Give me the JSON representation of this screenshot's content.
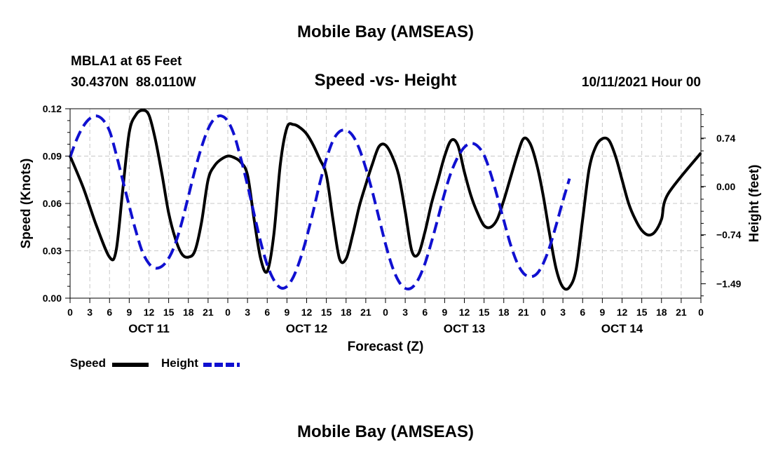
{
  "page": {
    "top_title": "Mobile Bay (AMSEAS)",
    "bottom_title": "Mobile Bay (AMSEAS)",
    "station_line": "MBLA1 at 65 Feet",
    "coords_line": "30.4370N  88.0110W",
    "date_line": "10/11/2021 Hour 00"
  },
  "legend": {
    "speed_label": "Speed",
    "height_label": "Height"
  },
  "colors": {
    "speed": "#000000",
    "height": "#1010d0",
    "grid": "#c8c8c8"
  },
  "chart_data": {
    "type": "line",
    "title": "Speed -vs- Height",
    "xlabel": "Forecast (Z)",
    "ylabel": "Speed (Knots)",
    "y2label": "Height (feet)",
    "grid": true,
    "xlim": [
      0,
      96
    ],
    "ylim": [
      0,
      0.12
    ],
    "y2lim": [
      -1.71,
      1.19
    ],
    "x_tick_values": [
      0,
      3,
      6,
      9,
      12,
      15,
      18,
      21,
      24,
      27,
      30,
      33,
      36,
      39,
      42,
      45,
      48,
      51,
      54,
      57,
      60,
      63,
      66,
      69,
      72,
      75,
      78,
      81,
      84,
      87,
      90,
      93,
      96
    ],
    "x_tick_labels": [
      "0",
      "3",
      "6",
      "9",
      "12",
      "15",
      "18",
      "21",
      "0",
      "3",
      "6",
      "9",
      "12",
      "15",
      "18",
      "21",
      "0",
      "3",
      "6",
      "9",
      "12",
      "15",
      "18",
      "21",
      "0",
      "3",
      "6",
      "9",
      "12",
      "15",
      "18",
      "21",
      "0"
    ],
    "day_labels": [
      {
        "x": 12,
        "label": "OCT 11"
      },
      {
        "x": 36,
        "label": "OCT 12"
      },
      {
        "x": 60,
        "label": "OCT 13"
      },
      {
        "x": 84,
        "label": "OCT 14"
      }
    ],
    "y_tick_values": [
      0,
      0.03,
      0.06,
      0.09,
      0.12
    ],
    "y_tick_labels": [
      "0.00",
      "0.03",
      "0.06",
      "0.09",
      "0.12"
    ],
    "y2_tick_values": [
      -1.49,
      -0.74,
      0.0,
      0.74
    ],
    "y2_tick_labels": [
      "−1.49",
      "−0.74",
      "0.00",
      "0.74"
    ],
    "series": [
      {
        "name": "Speed",
        "axis": "left",
        "style": "solid",
        "points": [
          [
            0,
            0.09
          ],
          [
            2,
            0.07
          ],
          [
            4,
            0.046
          ],
          [
            6,
            0.026
          ],
          [
            7,
            0.03
          ],
          [
            8,
            0.068
          ],
          [
            9,
            0.105
          ],
          [
            10,
            0.116
          ],
          [
            11,
            0.119
          ],
          [
            12,
            0.116
          ],
          [
            13,
            0.1
          ],
          [
            14,
            0.078
          ],
          [
            15,
            0.054
          ],
          [
            16,
            0.038
          ],
          [
            17,
            0.028
          ],
          [
            18,
            0.026
          ],
          [
            19,
            0.03
          ],
          [
            20,
            0.048
          ],
          [
            21,
            0.075
          ],
          [
            22,
            0.084
          ],
          [
            23,
            0.088
          ],
          [
            24,
            0.09
          ],
          [
            25,
            0.089
          ],
          [
            26,
            0.086
          ],
          [
            27,
            0.078
          ],
          [
            28,
            0.05
          ],
          [
            29,
            0.025
          ],
          [
            30,
            0.017
          ],
          [
            31,
            0.04
          ],
          [
            32,
            0.085
          ],
          [
            33,
            0.108
          ],
          [
            34,
            0.11
          ],
          [
            35,
            0.108
          ],
          [
            36,
            0.104
          ],
          [
            37,
            0.097
          ],
          [
            38,
            0.088
          ],
          [
            39,
            0.078
          ],
          [
            40,
            0.05
          ],
          [
            41,
            0.025
          ],
          [
            42,
            0.025
          ],
          [
            43,
            0.04
          ],
          [
            44,
            0.058
          ],
          [
            45,
            0.072
          ],
          [
            46,
            0.085
          ],
          [
            47,
            0.096
          ],
          [
            48,
            0.097
          ],
          [
            49,
            0.09
          ],
          [
            50,
            0.078
          ],
          [
            51,
            0.055
          ],
          [
            52,
            0.03
          ],
          [
            53,
            0.028
          ],
          [
            54,
            0.042
          ],
          [
            55,
            0.06
          ],
          [
            56,
            0.075
          ],
          [
            57,
            0.09
          ],
          [
            58,
            0.1
          ],
          [
            59,
            0.097
          ],
          [
            60,
            0.08
          ],
          [
            61,
            0.065
          ],
          [
            62,
            0.054
          ],
          [
            63,
            0.046
          ],
          [
            64,
            0.045
          ],
          [
            65,
            0.05
          ],
          [
            66,
            0.062
          ],
          [
            67,
            0.076
          ],
          [
            68,
            0.09
          ],
          [
            69,
            0.101
          ],
          [
            70,
            0.098
          ],
          [
            71,
            0.085
          ],
          [
            72,
            0.065
          ],
          [
            73,
            0.04
          ],
          [
            74,
            0.018
          ],
          [
            75,
            0.007
          ],
          [
            76,
            0.007
          ],
          [
            77,
            0.018
          ],
          [
            78,
            0.05
          ],
          [
            79,
            0.082
          ],
          [
            80,
            0.096
          ],
          [
            81,
            0.101
          ],
          [
            82,
            0.1
          ],
          [
            83,
            0.09
          ],
          [
            84,
            0.075
          ],
          [
            85,
            0.06
          ],
          [
            86,
            0.05
          ],
          [
            87,
            0.043
          ],
          [
            88,
            0.04
          ],
          [
            89,
            0.042
          ],
          [
            90,
            0.05
          ],
          [
            91,
            0.066
          ],
          [
            96,
            0.092
          ]
        ]
      },
      {
        "name": "Height",
        "axis": "right",
        "style": "dashed",
        "points": [
          [
            0,
            0.45
          ],
          [
            1,
            0.72
          ],
          [
            2,
            0.92
          ],
          [
            3,
            1.04
          ],
          [
            4,
            1.08
          ],
          [
            5,
            1.02
          ],
          [
            6,
            0.85
          ],
          [
            7,
            0.5
          ],
          [
            8,
            0.1
          ],
          [
            9,
            -0.3
          ],
          [
            10,
            -0.68
          ],
          [
            11,
            -1.0
          ],
          [
            12,
            -1.18
          ],
          [
            13,
            -1.25
          ],
          [
            14,
            -1.22
          ],
          [
            15,
            -1.1
          ],
          [
            16,
            -0.88
          ],
          [
            17,
            -0.55
          ],
          [
            18,
            -0.15
          ],
          [
            19,
            0.25
          ],
          [
            20,
            0.6
          ],
          [
            21,
            0.88
          ],
          [
            22,
            1.04
          ],
          [
            23,
            1.08
          ],
          [
            24,
            1.0
          ],
          [
            25,
            0.78
          ],
          [
            26,
            0.42
          ],
          [
            27,
            0.02
          ],
          [
            28,
            -0.42
          ],
          [
            29,
            -0.85
          ],
          [
            30,
            -1.2
          ],
          [
            31,
            -1.43
          ],
          [
            32,
            -1.55
          ],
          [
            33,
            -1.53
          ],
          [
            34,
            -1.38
          ],
          [
            35,
            -1.12
          ],
          [
            36,
            -0.78
          ],
          [
            37,
            -0.38
          ],
          [
            38,
            0.05
          ],
          [
            39,
            0.42
          ],
          [
            40,
            0.7
          ],
          [
            41,
            0.84
          ],
          [
            42,
            0.86
          ],
          [
            43,
            0.78
          ],
          [
            44,
            0.58
          ],
          [
            45,
            0.28
          ],
          [
            46,
            -0.08
          ],
          [
            47,
            -0.48
          ],
          [
            48,
            -0.88
          ],
          [
            49,
            -1.22
          ],
          [
            50,
            -1.45
          ],
          [
            51,
            -1.56
          ],
          [
            52,
            -1.55
          ],
          [
            53,
            -1.42
          ],
          [
            54,
            -1.18
          ],
          [
            55,
            -0.85
          ],
          [
            56,
            -0.48
          ],
          [
            57,
            -0.1
          ],
          [
            58,
            0.22
          ],
          [
            59,
            0.45
          ],
          [
            60,
            0.6
          ],
          [
            61,
            0.66
          ],
          [
            62,
            0.62
          ],
          [
            63,
            0.48
          ],
          [
            64,
            0.2
          ],
          [
            65,
            -0.15
          ],
          [
            66,
            -0.52
          ],
          [
            67,
            -0.88
          ],
          [
            68,
            -1.16
          ],
          [
            69,
            -1.33
          ],
          [
            70,
            -1.38
          ],
          [
            71,
            -1.34
          ],
          [
            72,
            -1.18
          ],
          [
            73,
            -0.92
          ],
          [
            74,
            -0.58
          ],
          [
            75,
            -0.22
          ],
          [
            76,
            0.12
          ]
        ]
      }
    ]
  }
}
